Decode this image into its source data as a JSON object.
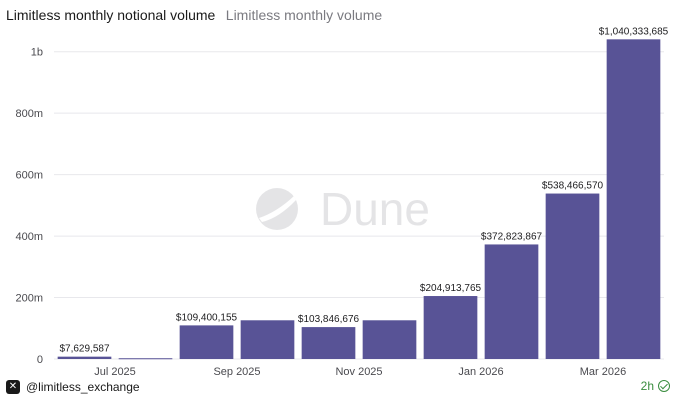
{
  "header": {
    "title": "Limitless monthly notional volume",
    "subtitle": "Limitless monthly volume"
  },
  "watermark": {
    "text": "Dune",
    "icon": "dune-logo-icon"
  },
  "footer": {
    "handle": "@limitless_exchange",
    "age": "2h",
    "status_icon": "check-circle-icon",
    "avatar_icon": "limitless-logo-icon"
  },
  "colors": {
    "bar": "#585396",
    "grid": "#e8e8ec",
    "axis_text": "#4a4a4f",
    "status": "#3a8d3f"
  },
  "chart_data": {
    "type": "bar",
    "title": "Limitless monthly notional volume",
    "subtitle": "Limitless monthly volume",
    "categories": [
      "2025-07",
      "2025-08",
      "2025-09",
      "2025-10",
      "2025-11",
      "2025-12",
      "2026-01",
      "2026-02",
      "2026-03",
      "2026-04"
    ],
    "values": [
      7629587,
      2500000,
      109400155,
      126000000,
      103846676,
      126000000,
      204913765,
      372823867,
      538466570,
      1040333685
    ],
    "data_labels": [
      "$7,629,587",
      "",
      "$109,400,155",
      "",
      "$103,846,676",
      "",
      "$204,913,765",
      "$372,823,867",
      "$538,466,570",
      "$1,040,333,685"
    ],
    "x_tick_labels": [
      {
        "category": "2025-07",
        "label": "Jul 2025"
      },
      {
        "category": "2025-09",
        "label": "Sep 2025"
      },
      {
        "category": "2025-11",
        "label": "Nov 2025"
      },
      {
        "category": "2026-01",
        "label": "Jan 2026"
      },
      {
        "category": "2026-03",
        "label": "Mar 2026"
      }
    ],
    "y_ticks": [
      {
        "value": 0,
        "label": "0"
      },
      {
        "value": 200000000,
        "label": "200m"
      },
      {
        "value": 400000000,
        "label": "400m"
      },
      {
        "value": 600000000,
        "label": "600m"
      },
      {
        "value": 800000000,
        "label": "800m"
      },
      {
        "value": 1000000000,
        "label": "1b"
      }
    ],
    "ylim": [
      0,
      1100000000
    ],
    "xlabel": "",
    "ylabel": "",
    "grid": true,
    "legend": "none"
  }
}
